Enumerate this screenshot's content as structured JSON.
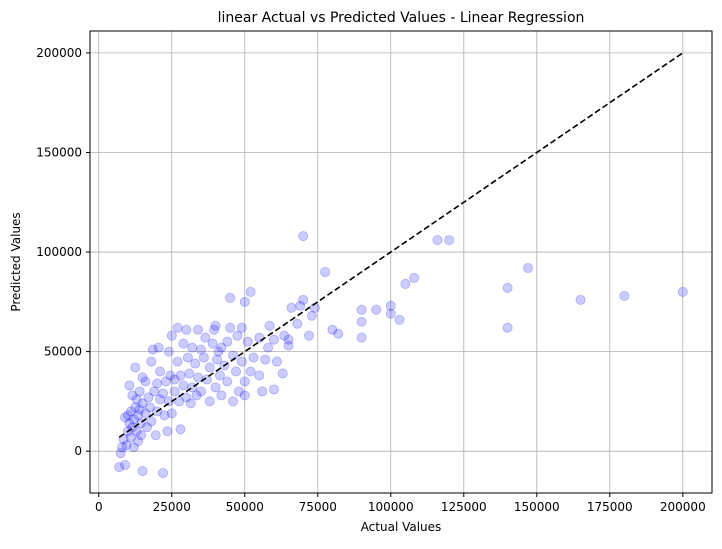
{
  "chart_data": {
    "type": "scatter",
    "title": "linear Actual vs Predicted Values - Linear Regression",
    "xlabel": "Actual Values",
    "ylabel": "Predicted Values",
    "xlim": [
      -3000,
      210000
    ],
    "ylim": [
      -21000,
      211000
    ],
    "xticks": [
      0,
      25000,
      50000,
      75000,
      100000,
      125000,
      150000,
      175000,
      200000
    ],
    "yticks": [
      0,
      50000,
      100000,
      150000,
      200000
    ],
    "grid": true,
    "colors": {
      "points": "#0000ff",
      "reference_line": "#000000",
      "grid": "#b0b0b0"
    },
    "reference_line": {
      "style": "dashed",
      "x": [
        7000,
        200000
      ],
      "y": [
        7000,
        200000
      ]
    },
    "points": [
      [
        7000,
        -8000
      ],
      [
        7500,
        -1000
      ],
      [
        8000,
        2000
      ],
      [
        8500,
        6000
      ],
      [
        9000,
        -7000
      ],
      [
        9000,
        17000
      ],
      [
        9500,
        3000
      ],
      [
        10000,
        10000
      ],
      [
        10000,
        18000
      ],
      [
        10500,
        14000
      ],
      [
        10500,
        33000
      ],
      [
        11000,
        20000
      ],
      [
        11000,
        7000
      ],
      [
        11500,
        12000
      ],
      [
        11500,
        28000
      ],
      [
        12000,
        2000
      ],
      [
        12000,
        16000
      ],
      [
        12500,
        42000
      ],
      [
        12500,
        22000
      ],
      [
        13000,
        10000
      ],
      [
        13000,
        26000
      ],
      [
        13500,
        18000
      ],
      [
        13500,
        5000
      ],
      [
        14000,
        21000
      ],
      [
        14000,
        30000
      ],
      [
        14500,
        8000
      ],
      [
        14500,
        14000
      ],
      [
        15000,
        -10000
      ],
      [
        15000,
        24000
      ],
      [
        15000,
        37000
      ],
      [
        16000,
        35000
      ],
      [
        16000,
        19000
      ],
      [
        16500,
        12000
      ],
      [
        17000,
        27000
      ],
      [
        17500,
        22000
      ],
      [
        18000,
        45000
      ],
      [
        18000,
        15000
      ],
      [
        18500,
        51000
      ],
      [
        19000,
        30000
      ],
      [
        19500,
        8000
      ],
      [
        20000,
        34000
      ],
      [
        20000,
        20000
      ],
      [
        20500,
        52000
      ],
      [
        21000,
        26000
      ],
      [
        21000,
        40000
      ],
      [
        22000,
        -11000
      ],
      [
        22000,
        29000
      ],
      [
        22500,
        18000
      ],
      [
        23000,
        35000
      ],
      [
        23500,
        10000
      ],
      [
        24000,
        25000
      ],
      [
        24000,
        50000
      ],
      [
        24500,
        38000
      ],
      [
        25000,
        58000
      ],
      [
        25000,
        19000
      ],
      [
        26000,
        36000
      ],
      [
        26000,
        30000
      ],
      [
        27000,
        62000
      ],
      [
        27000,
        45000
      ],
      [
        27500,
        25000
      ],
      [
        28000,
        11000
      ],
      [
        28000,
        38000
      ],
      [
        29000,
        54000
      ],
      [
        29000,
        33000
      ],
      [
        30000,
        61000
      ],
      [
        30000,
        27000
      ],
      [
        30500,
        47000
      ],
      [
        31000,
        39000
      ],
      [
        31500,
        24000
      ],
      [
        32000,
        52000
      ],
      [
        32000,
        32000
      ],
      [
        33000,
        44000
      ],
      [
        33500,
        28000
      ],
      [
        34000,
        61000
      ],
      [
        34000,
        37000
      ],
      [
        35000,
        51000
      ],
      [
        35000,
        30000
      ],
      [
        36000,
        47000
      ],
      [
        36500,
        57000
      ],
      [
        37000,
        36000
      ],
      [
        38000,
        42000
      ],
      [
        38000,
        25000
      ],
      [
        39000,
        54000
      ],
      [
        39500,
        61000
      ],
      [
        40000,
        32000
      ],
      [
        40000,
        63000
      ],
      [
        40500,
        46000
      ],
      [
        41000,
        50000
      ],
      [
        41500,
        38000
      ],
      [
        42000,
        52000
      ],
      [
        42000,
        28000
      ],
      [
        43000,
        43000
      ],
      [
        44000,
        55000
      ],
      [
        44000,
        35000
      ],
      [
        45000,
        62000
      ],
      [
        45000,
        77000
      ],
      [
        46000,
        48000
      ],
      [
        46000,
        25000
      ],
      [
        47000,
        40000
      ],
      [
        47500,
        58000
      ],
      [
        48000,
        30000
      ],
      [
        49000,
        62000
      ],
      [
        49000,
        45000
      ],
      [
        50000,
        75000
      ],
      [
        50000,
        28000
      ],
      [
        50000,
        35000
      ],
      [
        51000,
        55000
      ],
      [
        52000,
        80000
      ],
      [
        52000,
        40000
      ],
      [
        53000,
        47000
      ],
      [
        55000,
        57000
      ],
      [
        55000,
        38000
      ],
      [
        56000,
        30000
      ],
      [
        57000,
        46000
      ],
      [
        58000,
        52000
      ],
      [
        58500,
        63000
      ],
      [
        60000,
        31000
      ],
      [
        60000,
        56000
      ],
      [
        61000,
        45000
      ],
      [
        63000,
        39000
      ],
      [
        63500,
        58000
      ],
      [
        65000,
        53000
      ],
      [
        65000,
        56000
      ],
      [
        66000,
        72000
      ],
      [
        68000,
        64000
      ],
      [
        69000,
        73000
      ],
      [
        70000,
        108000
      ],
      [
        70000,
        76000
      ],
      [
        72000,
        58000
      ],
      [
        73000,
        68000
      ],
      [
        74000,
        72000
      ],
      [
        77500,
        90000
      ],
      [
        80000,
        61000
      ],
      [
        82000,
        59000
      ],
      [
        90000,
        71000
      ],
      [
        90000,
        57000
      ],
      [
        90000,
        65000
      ],
      [
        95000,
        71000
      ],
      [
        100000,
        69000
      ],
      [
        100000,
        73000
      ],
      [
        103000,
        66000
      ],
      [
        105000,
        84000
      ],
      [
        108000,
        87000
      ],
      [
        116000,
        106000
      ],
      [
        120000,
        106000
      ],
      [
        140000,
        82000
      ],
      [
        140000,
        62000
      ],
      [
        147000,
        92000
      ],
      [
        165000,
        76000
      ],
      [
        180000,
        78000
      ],
      [
        200000,
        80000
      ]
    ]
  }
}
